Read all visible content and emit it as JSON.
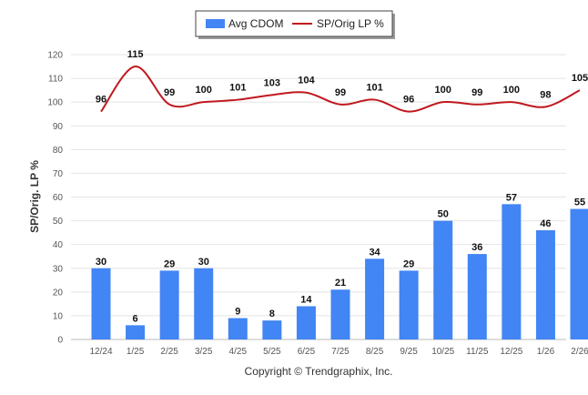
{
  "chart_data": {
    "type": "bar",
    "title": "",
    "xlabel": "",
    "ylabel": "SP/Orig. LP %",
    "ylim": [
      0,
      120
    ],
    "yticks": [
      0,
      10,
      20,
      30,
      40,
      50,
      60,
      70,
      80,
      90,
      100,
      110,
      120
    ],
    "grid": true,
    "legend_position": "top-center",
    "categories": [
      "12/24",
      "1/25",
      "2/25",
      "3/25",
      "4/25",
      "5/25",
      "6/25",
      "7/25",
      "8/25",
      "9/25",
      "10/25",
      "11/25",
      "12/25",
      "1/26",
      "2/26"
    ],
    "series": [
      {
        "name": "Avg CDOM",
        "type": "bar",
        "color": "#4285f4",
        "values": [
          30,
          6,
          29,
          30,
          9,
          8,
          14,
          21,
          34,
          29,
          50,
          36,
          57,
          46,
          55
        ]
      },
      {
        "name": "SP/Orig LP %",
        "type": "line",
        "color": "#c0181f",
        "values": [
          96,
          115,
          99,
          100,
          101,
          103,
          104,
          99,
          101,
          96,
          100,
          99,
          100,
          98,
          105
        ]
      }
    ],
    "footer": "Copyright © Trendgraphix, Inc."
  }
}
